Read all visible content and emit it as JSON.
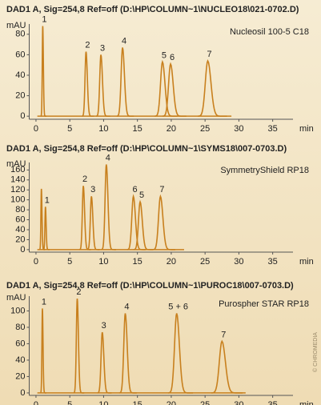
{
  "chart_data": [
    {
      "type": "chromatogram",
      "title": "DAD1 A, Sig=254,8 Ref=off (D:\\HP\\COLUMN~1\\NUCLEO18\\021-0702.D)",
      "ylabel": "mAU",
      "xlabel": "min",
      "annotation": "Nucleosil 100-5 C18",
      "x": [
        1.0,
        7.4,
        9.6,
        12.8,
        18.7,
        19.9,
        25.4
      ],
      "values": [
        88,
        63,
        60,
        67,
        53,
        51,
        54
      ],
      "labels": [
        "1",
        "2",
        "3",
        "4",
        "5",
        "6",
        "7"
      ],
      "color": "#c8801e",
      "xlim": [
        -1,
        38
      ],
      "ylim": [
        -3,
        90
      ],
      "xticks": [
        0,
        5,
        10,
        15,
        20,
        25,
        30,
        35
      ],
      "yticks": [
        0,
        20,
        40,
        60,
        80
      ]
    },
    {
      "type": "chromatogram",
      "title": "DAD1 A, Sig=254,8 Ref=off (D:\\HP\\COLUMN~1\\SYMS18\\007-0703.D)",
      "ylabel": "mAU",
      "xlabel": "min",
      "annotation": "SymmetryShield RP18",
      "x": [
        0.8,
        1.4,
        7.0,
        8.2,
        10.4,
        14.4,
        15.4,
        18.4
      ],
      "values": [
        122,
        86,
        128,
        107,
        171,
        107,
        96,
        107
      ],
      "labels": [
        null,
        "1",
        "2",
        "3",
        "4",
        "6",
        "5",
        "7"
      ],
      "color": "#c8801e",
      "xlim": [
        -1,
        38
      ],
      "ylim": [
        -5,
        175
      ],
      "xticks": [
        0,
        5,
        10,
        15,
        20,
        25,
        30,
        35
      ],
      "yticks": [
        0,
        20,
        40,
        60,
        80,
        100,
        120,
        140,
        160
      ]
    },
    {
      "type": "chromatogram",
      "title": "DAD1 A, Sig=254,8 Ref=off (D:\\HP\\COLUMN~1\\PUROC18\\007-0703.D)",
      "ylabel": "mAU",
      "xlabel": "min",
      "annotation": "Purospher STAR RP18",
      "x": [
        0.95,
        6.1,
        9.8,
        13.2,
        20.8,
        27.5
      ],
      "values": [
        103,
        115,
        74,
        97,
        97,
        63
      ],
      "labels": [
        "1",
        "2",
        "3",
        "4",
        "5 + 6",
        "7"
      ],
      "color": "#c8801e",
      "xlim": [
        -1,
        38
      ],
      "ylim": [
        -3,
        118
      ],
      "xticks": [
        0,
        5,
        10,
        15,
        20,
        25,
        30,
        35
      ],
      "yticks": [
        0,
        20,
        40,
        60,
        80,
        100
      ]
    }
  ],
  "watermark": "© CHROMEDIA"
}
